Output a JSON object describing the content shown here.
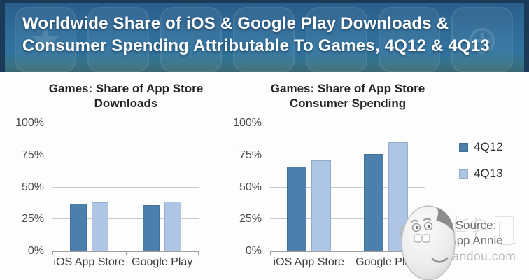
{
  "header": {
    "title": "Worldwide Share of iOS & Google Play Downloads & Consumer Spending Attributable To Games, 4Q12 & 4Q13",
    "title_lines": [
      "Worldwide Share of iOS & Google Play Downloads &",
      "Consumer Spending Attributable To Games, 4Q12 & 4Q13"
    ],
    "background_icons": [
      "star-app-icon",
      "app-icon",
      "app-icon",
      "app-icon",
      "app-icon",
      "globe-app-icon"
    ]
  },
  "colors": {
    "series_4q12": "#4d7fac",
    "series_4q12_border": "#3f6f9b",
    "series_4q13": "#aec6e3",
    "series_4q13_border": "#94adce",
    "header_navy": "#1b3a58",
    "gridline": "#c8c8c8",
    "axis": "#9f9f9f"
  },
  "chart_data": [
    {
      "type": "bar",
      "title": "Games: Share of App Store Downloads",
      "title_lines": [
        "Games: Share of App Store",
        "Downloads"
      ],
      "categories": [
        "iOS App Store",
        "Google Play"
      ],
      "series": [
        {
          "name": "4Q12",
          "values": [
            37,
            36
          ]
        },
        {
          "name": "4Q13",
          "values": [
            38,
            39
          ]
        }
      ],
      "ylim": [
        0,
        100
      ],
      "yticks": [
        100,
        75,
        50,
        25,
        0
      ],
      "unit": "%",
      "grid": true,
      "legend_position": "right"
    },
    {
      "type": "bar",
      "title": "Games: Share of App Store Consumer Spending",
      "title_lines": [
        "Games: Share of App Store",
        "Consumer Spending"
      ],
      "categories": [
        "iOS App Store",
        "Google Play"
      ],
      "series": [
        {
          "name": "4Q12",
          "values": [
            66,
            76
          ]
        },
        {
          "name": "4Q13",
          "values": [
            71,
            85
          ]
        }
      ],
      "ylim": [
        0,
        100
      ],
      "yticks": [
        100,
        75,
        50,
        25,
        0
      ],
      "unit": "%",
      "grid": true,
      "legend_position": "right"
    }
  ],
  "legend": {
    "items": [
      {
        "label": "4Q12",
        "color": "#4d7fac",
        "border": "#3f6f9b"
      },
      {
        "label": "4Q13",
        "color": "#aec6e3",
        "border": "#94adce"
      }
    ]
  },
  "source": {
    "label": "Source:",
    "name": "App Annie"
  },
  "watermark": {
    "site": "candou.com"
  }
}
